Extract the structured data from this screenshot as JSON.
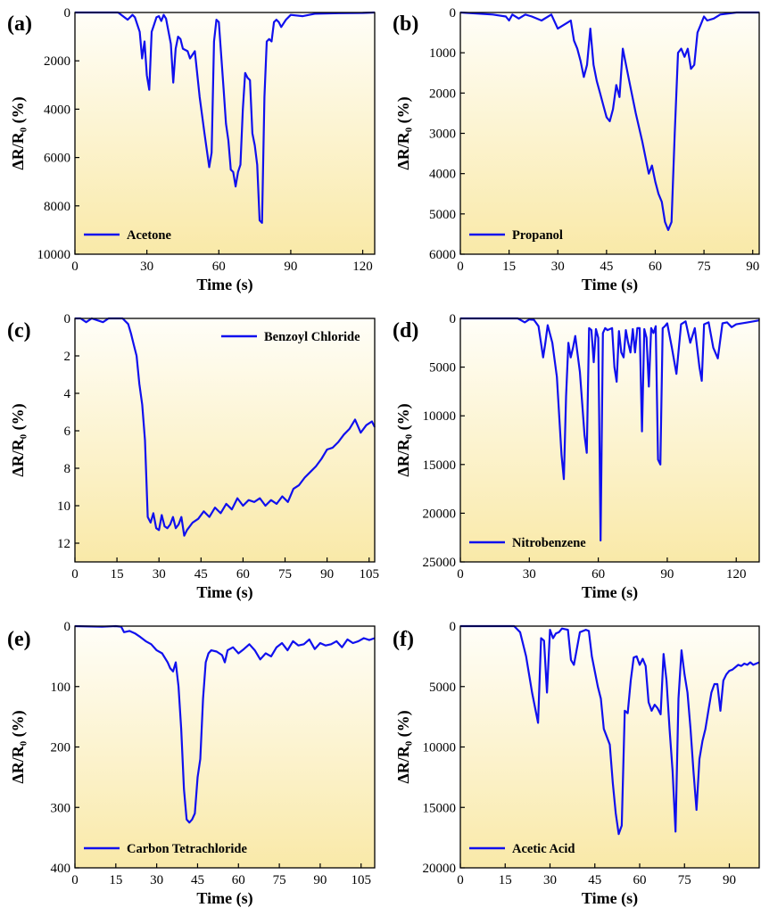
{
  "colors": {
    "line": "#1010ee",
    "bg_top": "#fffef8",
    "bg_bottom": "#f9e9a8"
  },
  "chart_data": [
    {
      "type": "line",
      "panel_label": "(a)",
      "xlabel": "Time (s)",
      "ylabel": "ΔR/R₀ (%)",
      "xlim": [
        0,
        125
      ],
      "ylim": [
        0,
        10000
      ],
      "inverted_y": true,
      "xticks": [
        0,
        30,
        60,
        90,
        120
      ],
      "yticks": [
        0,
        2000,
        4000,
        6000,
        8000,
        10000
      ],
      "legend": "bottom-left",
      "series": [
        {
          "name": "Acetone",
          "x": [
            0,
            18,
            22,
            24,
            25,
            27,
            28,
            29,
            30,
            31,
            32,
            33,
            34,
            35,
            36,
            37,
            38,
            40,
            41,
            42,
            43,
            44,
            45,
            47,
            48,
            50,
            52,
            54,
            56,
            57,
            58,
            59,
            60,
            61,
            62,
            63,
            64,
            65,
            66,
            67,
            68,
            69,
            70,
            71,
            72,
            73,
            74,
            75,
            76,
            77,
            78,
            79,
            80,
            81,
            82,
            83,
            84,
            85,
            86,
            88,
            90,
            95,
            100,
            110,
            120,
            125
          ],
          "y": [
            0,
            0,
            300,
            100,
            200,
            800,
            1900,
            1200,
            2600,
            3200,
            800,
            500,
            200,
            150,
            350,
            100,
            250,
            1300,
            2900,
            1500,
            1000,
            1100,
            1500,
            1600,
            1900,
            1600,
            3500,
            5000,
            6400,
            5800,
            1200,
            300,
            400,
            1800,
            3200,
            4600,
            5300,
            6500,
            6600,
            7200,
            6600,
            6300,
            4000,
            2500,
            2700,
            2800,
            5000,
            5500,
            6300,
            8600,
            8700,
            3500,
            1200,
            1100,
            1200,
            400,
            300,
            400,
            600,
            300,
            100,
            150,
            50,
            30,
            20,
            0
          ]
        }
      ]
    },
    {
      "type": "line",
      "panel_label": "(b)",
      "xlabel": "Time (s)",
      "ylabel": "ΔR/R₀ (%)",
      "xlim": [
        0,
        92
      ],
      "ylim": [
        0,
        6000
      ],
      "inverted_y": true,
      "xticks": [
        0,
        15,
        30,
        45,
        60,
        75,
        90
      ],
      "yticks": [
        0,
        1000,
        2000,
        3000,
        4000,
        5000,
        6000
      ],
      "legend": "bottom-left",
      "series": [
        {
          "name": "Propanol",
          "x": [
            0,
            10,
            14,
            15,
            16,
            18,
            20,
            22,
            25,
            28,
            30,
            32,
            34,
            35,
            36,
            37,
            38,
            39,
            40,
            41,
            42,
            43,
            44,
            45,
            46,
            47,
            48,
            49,
            50,
            52,
            54,
            56,
            58,
            59,
            60,
            61,
            62,
            63,
            64,
            65,
            66,
            67,
            68,
            69,
            70,
            71,
            72,
            73,
            74,
            75,
            76,
            78,
            80,
            85,
            92
          ],
          "y": [
            0,
            50,
            100,
            200,
            50,
            150,
            50,
            100,
            200,
            50,
            400,
            300,
            200,
            700,
            900,
            1200,
            1600,
            1300,
            400,
            1300,
            1700,
            2000,
            2300,
            2600,
            2700,
            2400,
            1800,
            2100,
            900,
            1700,
            2500,
            3200,
            4000,
            3800,
            4200,
            4500,
            4700,
            5200,
            5400,
            5200,
            3000,
            1000,
            900,
            1100,
            900,
            1400,
            1300,
            500,
            300,
            100,
            200,
            150,
            50,
            0,
            0
          ]
        }
      ]
    },
    {
      "type": "line",
      "panel_label": "(c)",
      "xlabel": "Time (s)",
      "ylabel": "ΔR/R₀ (%)",
      "xlim": [
        0,
        107
      ],
      "ylim": [
        0,
        13
      ],
      "inverted_y": true,
      "xticks": [
        0,
        15,
        30,
        45,
        60,
        75,
        90,
        105
      ],
      "yticks": [
        0,
        2,
        4,
        6,
        8,
        10,
        12
      ],
      "legend": "top-right",
      "series": [
        {
          "name": "Benzoyl Chloride",
          "x": [
            0,
            2,
            4,
            6,
            8,
            10,
            12,
            15,
            17,
            19,
            20,
            21,
            22,
            23,
            24,
            25,
            26,
            27,
            28,
            29,
            30,
            31,
            32,
            33,
            34,
            35,
            36,
            37,
            38,
            39,
            40,
            42,
            44,
            46,
            48,
            50,
            52,
            54,
            56,
            58,
            60,
            62,
            64,
            66,
            68,
            70,
            72,
            74,
            76,
            78,
            80,
            82,
            84,
            86,
            88,
            90,
            92,
            94,
            96,
            98,
            100,
            102,
            104,
            106,
            107
          ],
          "y": [
            0,
            0,
            0.2,
            0,
            0.1,
            0.2,
            0,
            0,
            0,
            0.3,
            0.8,
            1.4,
            2.0,
            3.5,
            4.6,
            6.5,
            10.6,
            10.9,
            10.4,
            11.2,
            11.3,
            10.5,
            11.1,
            11.2,
            11.0,
            10.6,
            11.2,
            11.0,
            10.6,
            11.6,
            11.3,
            10.9,
            10.7,
            10.3,
            10.6,
            10.1,
            10.4,
            9.9,
            10.2,
            9.6,
            10.0,
            9.7,
            9.8,
            9.6,
            10.0,
            9.7,
            9.9,
            9.5,
            9.8,
            9.1,
            8.9,
            8.5,
            8.2,
            7.9,
            7.5,
            7.0,
            6.9,
            6.6,
            6.2,
            5.9,
            5.4,
            6.1,
            5.7,
            5.5,
            5.8
          ]
        }
      ]
    },
    {
      "type": "line",
      "panel_label": "(d)",
      "xlabel": "Time (s)",
      "ylabel": "ΔR/R₀ (%)",
      "xlim": [
        0,
        130
      ],
      "ylim": [
        0,
        25000
      ],
      "inverted_y": true,
      "xticks": [
        0,
        30,
        60,
        90,
        120
      ],
      "yticks": [
        0,
        5000,
        10000,
        15000,
        20000,
        25000
      ],
      "legend": "bottom-left",
      "series": [
        {
          "name": "Nitrobenzene",
          "x": [
            0,
            25,
            28,
            30,
            32,
            34,
            36,
            37,
            38,
            40,
            42,
            44,
            45,
            46,
            47,
            48,
            49,
            50,
            52,
            54,
            55,
            56,
            57,
            58,
            59,
            60,
            61,
            62,
            63,
            64,
            66,
            67,
            68,
            69,
            70,
            71,
            72,
            73,
            74,
            75,
            76,
            77,
            78,
            79,
            80,
            81,
            82,
            83,
            84,
            85,
            86,
            87,
            88,
            89,
            90,
            92,
            94,
            96,
            98,
            100,
            102,
            104,
            105,
            106,
            108,
            110,
            112,
            114,
            116,
            118,
            120,
            125,
            130
          ],
          "y": [
            0,
            0,
            400,
            100,
            150,
            800,
            4000,
            2500,
            700,
            2500,
            6000,
            14000,
            16500,
            8000,
            2500,
            4000,
            3000,
            1800,
            5500,
            12000,
            13800,
            1000,
            1200,
            4500,
            1100,
            2000,
            22800,
            1500,
            1000,
            1200,
            1000,
            5000,
            6500,
            1300,
            3500,
            4000,
            1200,
            2500,
            3500,
            1100,
            3500,
            1000,
            1000,
            11600,
            1100,
            2000,
            7000,
            1000,
            1500,
            800,
            14500,
            15000,
            1000,
            800,
            500,
            3000,
            5700,
            600,
            300,
            2500,
            1000,
            5000,
            6400,
            600,
            400,
            3000,
            4100,
            500,
            400,
            900,
            600,
            400,
            200
          ]
        }
      ]
    },
    {
      "type": "line",
      "panel_label": "(e)",
      "xlabel": "Time (s)",
      "ylabel": "ΔR/R₀ (%)",
      "xlim": [
        0,
        110
      ],
      "ylim": [
        0,
        400
      ],
      "inverted_y": true,
      "xticks": [
        0,
        15,
        30,
        45,
        60,
        75,
        90,
        105
      ],
      "yticks": [
        0,
        100,
        200,
        300,
        400
      ],
      "legend": "bottom-left",
      "series": [
        {
          "name": "Carbon Tetrachloride",
          "x": [
            0,
            10,
            15,
            17,
            18,
            20,
            22,
            24,
            26,
            28,
            30,
            32,
            34,
            35,
            36,
            37,
            38,
            39,
            40,
            41,
            42,
            43,
            44,
            45,
            46,
            47,
            48,
            49,
            50,
            52,
            54,
            55,
            56,
            58,
            60,
            62,
            64,
            66,
            68,
            70,
            72,
            74,
            76,
            78,
            80,
            82,
            84,
            86,
            88,
            90,
            92,
            94,
            96,
            98,
            100,
            102,
            104,
            106,
            108,
            110
          ],
          "y": [
            0,
            1,
            0,
            1,
            10,
            8,
            12,
            18,
            25,
            30,
            40,
            45,
            60,
            70,
            75,
            60,
            100,
            170,
            270,
            320,
            325,
            320,
            310,
            250,
            220,
            120,
            60,
            45,
            40,
            42,
            48,
            60,
            40,
            35,
            45,
            38,
            30,
            40,
            55,
            45,
            50,
            35,
            28,
            40,
            25,
            32,
            30,
            22,
            38,
            28,
            32,
            30,
            25,
            35,
            22,
            28,
            25,
            20,
            23,
            20
          ]
        }
      ]
    },
    {
      "type": "line",
      "panel_label": "(f)",
      "xlabel": "Time (s)",
      "ylabel": "ΔR/R₀ (%)",
      "xlim": [
        0,
        100
      ],
      "ylim": [
        0,
        20000
      ],
      "inverted_y": true,
      "xticks": [
        0,
        15,
        30,
        45,
        60,
        75,
        90
      ],
      "yticks": [
        0,
        5000,
        10000,
        15000,
        20000
      ],
      "legend": "bottom-left",
      "series": [
        {
          "name": "Acetic Acid",
          "x": [
            0,
            18,
            20,
            22,
            24,
            26,
            27,
            28,
            29,
            30,
            31,
            32,
            33,
            34,
            36,
            37,
            38,
            40,
            42,
            43,
            44,
            46,
            47,
            48,
            50,
            51,
            52,
            53,
            54,
            55,
            56,
            57,
            58,
            59,
            60,
            61,
            62,
            63,
            64,
            65,
            66,
            67,
            68,
            69,
            70,
            71,
            72,
            73,
            74,
            75,
            76,
            77,
            78,
            79,
            80,
            81,
            82,
            83,
            84,
            85,
            86,
            87,
            88,
            89,
            90,
            91,
            92,
            93,
            94,
            95,
            96,
            97,
            98,
            99,
            100
          ],
          "y": [
            0,
            0,
            500,
            2500,
            5500,
            8000,
            1000,
            1200,
            5500,
            300,
            1000,
            600,
            500,
            200,
            300,
            2800,
            3200,
            500,
            300,
            400,
            2500,
            5000,
            6000,
            8500,
            9800,
            13000,
            15500,
            17200,
            16500,
            7000,
            7200,
            4500,
            2600,
            2500,
            3200,
            2700,
            3300,
            6300,
            7000,
            6500,
            6800,
            7300,
            2300,
            4500,
            8500,
            12000,
            17000,
            6000,
            2000,
            4000,
            5500,
            8500,
            12000,
            15200,
            11000,
            9500,
            8500,
            7000,
            5500,
            4800,
            4800,
            7000,
            4500,
            4000,
            3700,
            3600,
            3400,
            3200,
            3300,
            3100,
            3200,
            3000,
            3200,
            3100,
            3000
          ]
        }
      ]
    }
  ]
}
